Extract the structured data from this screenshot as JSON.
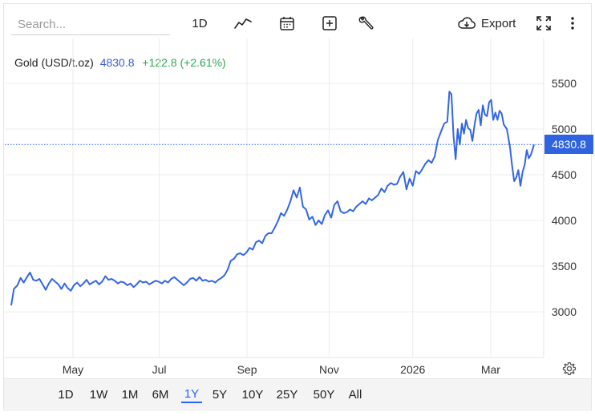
{
  "search": {
    "placeholder": "Search..."
  },
  "toolbar": {
    "interval_label": "1D",
    "export_label": "Export"
  },
  "legend": {
    "symbol": "Gold (USD/t.oz)",
    "price": "4830.8",
    "change": "+122.8 (+2.61%)"
  },
  "price_tag": "4830.8",
  "ranges": [
    {
      "label": "1D"
    },
    {
      "label": "1W"
    },
    {
      "label": "1M"
    },
    {
      "label": "6M"
    },
    {
      "label": "1Y",
      "active": true
    },
    {
      "label": "5Y"
    },
    {
      "label": "10Y"
    },
    {
      "label": "25Y"
    },
    {
      "label": "50Y"
    },
    {
      "label": "All"
    }
  ],
  "colors": {
    "line": "#3366e6",
    "accent": "#2962ff",
    "positive": "#2fa84f",
    "grid": "#ececec"
  },
  "icons": [
    "line-chart-icon",
    "calendar-icon",
    "add-indicator-icon",
    "wrench-icon",
    "cloud-download-icon",
    "fullscreen-icon",
    "more-vertical-icon",
    "gear-icon"
  ],
  "chart_data": {
    "type": "line",
    "title": "",
    "xlabel": "",
    "ylabel": "",
    "ylim": [
      2500,
      5900
    ],
    "y_ticks": [
      3000,
      3500,
      4000,
      4500,
      5000,
      5500
    ],
    "x_ticks": [
      {
        "label": "May",
        "x": 0.118
      },
      {
        "label": "Jul",
        "x": 0.283
      },
      {
        "label": "Sep",
        "x": 0.451
      },
      {
        "label": "Nov",
        "x": 0.608
      },
      {
        "label": "2026",
        "x": 0.768
      },
      {
        "label": "Mar",
        "x": 0.917
      }
    ],
    "last_value": 4830.8,
    "grid": true,
    "series": [
      {
        "name": "",
        "points": [
          [
            0.0,
            3070
          ],
          [
            0.005,
            3250
          ],
          [
            0.012,
            3290
          ],
          [
            0.018,
            3370
          ],
          [
            0.024,
            3320
          ],
          [
            0.03,
            3380
          ],
          [
            0.036,
            3430
          ],
          [
            0.042,
            3350
          ],
          [
            0.048,
            3340
          ],
          [
            0.054,
            3360
          ],
          [
            0.06,
            3300
          ],
          [
            0.066,
            3240
          ],
          [
            0.072,
            3310
          ],
          [
            0.078,
            3360
          ],
          [
            0.084,
            3330
          ],
          [
            0.09,
            3300
          ],
          [
            0.096,
            3250
          ],
          [
            0.102,
            3310
          ],
          [
            0.108,
            3260
          ],
          [
            0.114,
            3230
          ],
          [
            0.12,
            3290
          ],
          [
            0.126,
            3320
          ],
          [
            0.132,
            3280
          ],
          [
            0.138,
            3310
          ],
          [
            0.144,
            3350
          ],
          [
            0.15,
            3300
          ],
          [
            0.156,
            3320
          ],
          [
            0.162,
            3340
          ],
          [
            0.168,
            3300
          ],
          [
            0.174,
            3330
          ],
          [
            0.18,
            3390
          ],
          [
            0.186,
            3350
          ],
          [
            0.192,
            3360
          ],
          [
            0.198,
            3340
          ],
          [
            0.204,
            3310
          ],
          [
            0.21,
            3330
          ],
          [
            0.216,
            3320
          ],
          [
            0.222,
            3290
          ],
          [
            0.228,
            3310
          ],
          [
            0.234,
            3270
          ],
          [
            0.24,
            3300
          ],
          [
            0.246,
            3340
          ],
          [
            0.252,
            3320
          ],
          [
            0.258,
            3330
          ],
          [
            0.264,
            3300
          ],
          [
            0.27,
            3320
          ],
          [
            0.276,
            3340
          ],
          [
            0.282,
            3330
          ],
          [
            0.288,
            3310
          ],
          [
            0.294,
            3340
          ],
          [
            0.3,
            3320
          ],
          [
            0.306,
            3360
          ],
          [
            0.312,
            3380
          ],
          [
            0.318,
            3350
          ],
          [
            0.324,
            3320
          ],
          [
            0.33,
            3290
          ],
          [
            0.336,
            3320
          ],
          [
            0.342,
            3360
          ],
          [
            0.348,
            3370
          ],
          [
            0.354,
            3340
          ],
          [
            0.36,
            3380
          ],
          [
            0.366,
            3340
          ],
          [
            0.372,
            3350
          ],
          [
            0.378,
            3330
          ],
          [
            0.384,
            3340
          ],
          [
            0.39,
            3320
          ],
          [
            0.396,
            3350
          ],
          [
            0.402,
            3370
          ],
          [
            0.408,
            3400
          ],
          [
            0.414,
            3460
          ],
          [
            0.42,
            3560
          ],
          [
            0.426,
            3580
          ],
          [
            0.432,
            3630
          ],
          [
            0.438,
            3640
          ],
          [
            0.444,
            3620
          ],
          [
            0.45,
            3650
          ],
          [
            0.456,
            3700
          ],
          [
            0.462,
            3680
          ],
          [
            0.468,
            3760
          ],
          [
            0.474,
            3780
          ],
          [
            0.48,
            3750
          ],
          [
            0.486,
            3830
          ],
          [
            0.492,
            3860
          ],
          [
            0.498,
            3860
          ],
          [
            0.504,
            3920
          ],
          [
            0.51,
            3990
          ],
          [
            0.516,
            4080
          ],
          [
            0.522,
            4050
          ],
          [
            0.528,
            4120
          ],
          [
            0.534,
            4210
          ],
          [
            0.54,
            4330
          ],
          [
            0.546,
            4250
          ],
          [
            0.552,
            4360
          ],
          [
            0.558,
            4150
          ],
          [
            0.564,
            4120
          ],
          [
            0.57,
            4010
          ],
          [
            0.576,
            4040
          ],
          [
            0.582,
            3950
          ],
          [
            0.588,
            4000
          ],
          [
            0.594,
            3960
          ],
          [
            0.6,
            4060
          ],
          [
            0.606,
            4110
          ],
          [
            0.612,
            4030
          ],
          [
            0.618,
            4170
          ],
          [
            0.624,
            4210
          ],
          [
            0.63,
            4100
          ],
          [
            0.636,
            4080
          ],
          [
            0.642,
            4090
          ],
          [
            0.648,
            4120
          ],
          [
            0.654,
            4100
          ],
          [
            0.66,
            4150
          ],
          [
            0.666,
            4180
          ],
          [
            0.672,
            4210
          ],
          [
            0.678,
            4180
          ],
          [
            0.684,
            4240
          ],
          [
            0.69,
            4220
          ],
          [
            0.696,
            4250
          ],
          [
            0.702,
            4280
          ],
          [
            0.708,
            4350
          ],
          [
            0.714,
            4310
          ],
          [
            0.72,
            4380
          ],
          [
            0.726,
            4410
          ],
          [
            0.732,
            4390
          ],
          [
            0.738,
            4400
          ],
          [
            0.744,
            4480
          ],
          [
            0.75,
            4530
          ],
          [
            0.756,
            4340
          ],
          [
            0.762,
            4460
          ],
          [
            0.768,
            4380
          ],
          [
            0.774,
            4540
          ],
          [
            0.78,
            4510
          ],
          [
            0.786,
            4560
          ],
          [
            0.792,
            4620
          ],
          [
            0.798,
            4660
          ],
          [
            0.804,
            4630
          ],
          [
            0.81,
            4700
          ],
          [
            0.816,
            4880
          ],
          [
            0.822,
            4970
          ],
          [
            0.828,
            5060
          ],
          [
            0.834,
            5080
          ],
          [
            0.838,
            5410
          ],
          [
            0.842,
            5380
          ],
          [
            0.846,
            4920
          ],
          [
            0.85,
            4670
          ],
          [
            0.854,
            5000
          ],
          [
            0.858,
            4830
          ],
          [
            0.862,
            5060
          ],
          [
            0.866,
            4950
          ],
          [
            0.87,
            5100
          ],
          [
            0.874,
            5010
          ],
          [
            0.878,
            4990
          ],
          [
            0.882,
            4870
          ],
          [
            0.886,
            5040
          ],
          [
            0.89,
            5170
          ],
          [
            0.894,
            5210
          ],
          [
            0.898,
            5040
          ],
          [
            0.902,
            5260
          ],
          [
            0.906,
            5160
          ],
          [
            0.91,
            5140
          ],
          [
            0.914,
            5290
          ],
          [
            0.918,
            5320
          ],
          [
            0.922,
            5100
          ],
          [
            0.926,
            5180
          ],
          [
            0.93,
            5100
          ],
          [
            0.934,
            5200
          ],
          [
            0.938,
            5170
          ],
          [
            0.942,
            5050
          ],
          [
            0.948,
            5000
          ],
          [
            0.954,
            4800
          ],
          [
            0.958,
            4600
          ],
          [
            0.962,
            4430
          ],
          [
            0.966,
            4470
          ],
          [
            0.97,
            4550
          ],
          [
            0.974,
            4380
          ],
          [
            0.978,
            4530
          ],
          [
            0.982,
            4610
          ],
          [
            0.986,
            4770
          ],
          [
            0.99,
            4680
          ],
          [
            0.994,
            4720
          ],
          [
            1.0,
            4830
          ]
        ]
      }
    ]
  }
}
